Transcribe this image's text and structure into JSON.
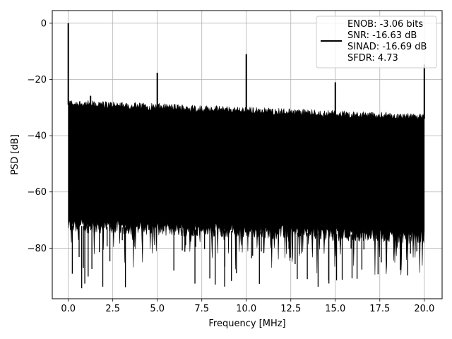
{
  "chart_data": {
    "type": "line",
    "xlabel": "Frequency [MHz]",
    "ylabel": "PSD [dB]",
    "xlim": [
      -0.9,
      21.0
    ],
    "ylim": [
      -98.0,
      4.5
    ],
    "xticks": [
      0.0,
      2.5,
      5.0,
      7.5,
      10.0,
      12.5,
      15.0,
      17.5,
      20.0
    ],
    "xtick_labels": [
      "0.0",
      "2.5",
      "5.0",
      "7.5",
      "10.0",
      "12.5",
      "15.0",
      "17.5",
      "20.0"
    ],
    "yticks": [
      0,
      -20,
      -40,
      -60,
      -80
    ],
    "ytick_labels": [
      "0",
      "−20",
      "−40",
      "−60",
      "−80"
    ],
    "grid": true,
    "line_color": "#000000",
    "legend": {
      "placement": "top-right",
      "lines": [
        "ENOB: -3.06 bits",
        "SNR: -16.63 dB",
        "SINAD: -16.69 dB",
        "SFDR: 4.73"
      ]
    },
    "noise_band": {
      "x_start": 0.0,
      "x_end": 20.0,
      "upper_db_start": -29,
      "upper_db_end": -34,
      "lower_db_start": -72,
      "lower_db_end": -76,
      "deep_min_db": -94.5
    },
    "peaks": [
      {
        "x": 0.0,
        "y": 0.0
      },
      {
        "x": 1.25,
        "y": -25.8
      },
      {
        "x": 5.0,
        "y": -17.6
      },
      {
        "x": 10.0,
        "y": -11.0
      },
      {
        "x": 15.0,
        "y": -21.0
      },
      {
        "x": 20.0,
        "y": -14.7
      }
    ]
  }
}
